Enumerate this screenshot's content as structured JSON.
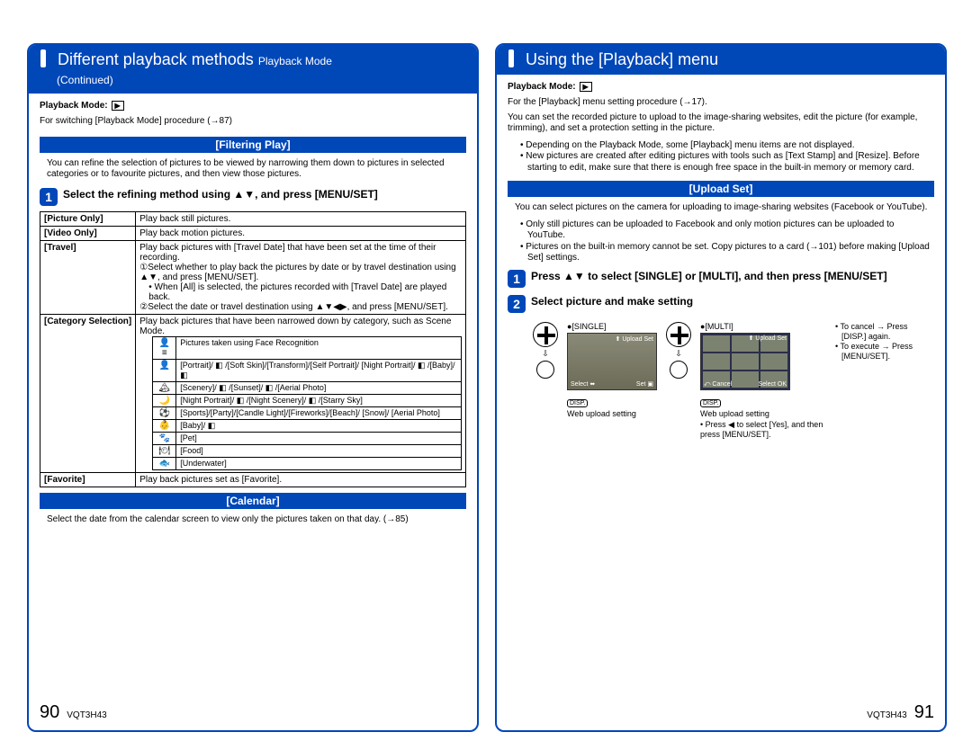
{
  "colors": {
    "brand": "#0047b8",
    "text": "#000000",
    "bg": "#ffffff"
  },
  "left": {
    "title_main": "Different playback methods",
    "title_sub": "Playback Mode",
    "title_cont": "(Continued)",
    "mode_label": "Playback Mode:",
    "intro": "For switching [Playback Mode] procedure (→87)",
    "section1": "[Filtering Play]",
    "sec1_body": "You can refine the selection of pictures to be viewed by narrowing them down to pictures in selected categories or to favourite pictures, and then view those pictures.",
    "step1": "Select the refining method using ▲▼, and press [MENU/SET]",
    "rows": {
      "picOnly_k": "[Picture Only]",
      "picOnly_v": "Play back still pictures.",
      "vidOnly_k": "[Video Only]",
      "vidOnly_v": "Play back motion pictures.",
      "travel_k": "[Travel]",
      "travel_v1": "Play back pictures with [Travel Date] that have been set at the time of their recording.",
      "travel_v2": "①Select whether to play back the pictures by date or by travel destination using ▲▼, and press [MENU/SET].",
      "travel_v3": "• When [All] is selected, the pictures recorded with [Travel Date] are played back.",
      "travel_v4": "②Select the date or travel destination using ▲▼◀▶, and press [MENU/SET].",
      "cat_k": "[Category Selection]",
      "cat_v": "Play back pictures that have been narrowed down by category, such as Scene Mode.",
      "fav_k": "[Favorite]",
      "fav_v": "Play back pictures set as [Favorite]."
    },
    "inner": [
      {
        "ico": "👤≡",
        "txt": "Pictures taken using Face Recognition"
      },
      {
        "ico": "👤",
        "txt": "[Portrait]/ ◧ /[Soft Skin]/[Transform]/[Self Portrait]/ [Night Portrait]/ ◧ /[Baby]/ ◧"
      },
      {
        "ico": "🏔",
        "txt": "[Scenery]/ ◧ /[Sunset]/ ◧ /[Aerial Photo]"
      },
      {
        "ico": "🌙",
        "txt": "[Night Portrait]/ ◧ /[Night Scenery]/ ◧ /[Starry Sky]"
      },
      {
        "ico": "⚽",
        "txt": "[Sports]/[Party]/[Candle Light]/[Fireworks]/[Beach]/ [Snow]/ [Aerial Photo]"
      },
      {
        "ico": "👶",
        "txt": "[Baby]/ ◧"
      },
      {
        "ico": "🐾",
        "txt": "[Pet]"
      },
      {
        "ico": "🍽",
        "txt": "[Food]"
      },
      {
        "ico": "🐟",
        "txt": "[Underwater]"
      }
    ],
    "section2": "[Calendar]",
    "sec2_body": "Select the date from the calendar screen to view only the pictures taken on that day. (→85)",
    "page_num": "90",
    "doc_id": "VQT3H43"
  },
  "right": {
    "title_main": "Using the [Playback] menu",
    "mode_label": "Playback Mode:",
    "intro1": "For the [Playback] menu setting procedure (→17).",
    "intro2": "You can set the recorded picture to upload to the image-sharing websites, edit the picture (for example, trimming), and set a protection setting in the picture.",
    "bullets_top": [
      "Depending on the Playback Mode, some [Playback] menu items are not displayed.",
      "New pictures are created after editing pictures with tools such as [Text Stamp] and [Resize]. Before starting to edit, make sure that there is enough free space in the built-in memory or memory card."
    ],
    "section1": "[Upload Set]",
    "sec1_body": "You can select pictures on the camera for uploading to image-sharing websites (Facebook or YouTube).",
    "bullets_mid": [
      "Only still pictures can be uploaded to Facebook and only motion pictures can be uploaded to YouTube.",
      "Pictures on the built-in memory cannot be set. Copy pictures to a card (→101) before making [Upload Set] settings."
    ],
    "step1": "Press ▲▼ to select [SINGLE] or [MULTI], and then press [MENU/SET]",
    "step2": "Select picture and make setting",
    "single_lbl": "●[SINGLE]",
    "multi_lbl": "●[MULTI]",
    "cap_single": "Web upload setting",
    "cap_multi": "Web upload setting",
    "notes_right": [
      "To cancel → Press [DISP.] again.",
      "To execute → Press [MENU/SET]."
    ],
    "note_multi": "Press ◀ to select [Yes], and then press [MENU/SET].",
    "disp_lbl": "DISP.",
    "scr_top_r": "⬆ Upload Set",
    "scr_bot_l": "Select ⬌",
    "scr_bot_r": "Set ▣",
    "grid_bot_l": "⤺ Cancel",
    "grid_bot_r": "Select   OK",
    "page_num": "91",
    "doc_id": "VQT3H43"
  }
}
